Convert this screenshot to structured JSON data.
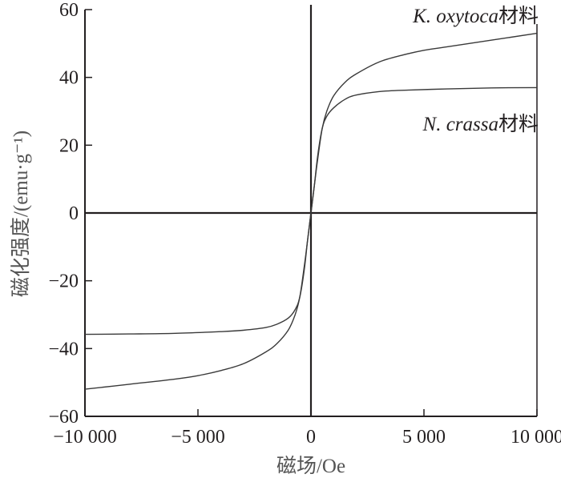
{
  "chart_data": {
    "type": "line",
    "title": "",
    "xlabel": "磁场/Oe",
    "ylabel": "磁化强度/(emu·g⁻¹)",
    "xlim": [
      -10000,
      10000
    ],
    "ylim": [
      -60,
      60
    ],
    "xticks": [
      -10000,
      -5000,
      0,
      5000,
      10000
    ],
    "xtick_labels": [
      "−10 000",
      "−5 000",
      "0",
      "5 000",
      "10 000"
    ],
    "yticks": [
      -60,
      -40,
      -20,
      0,
      20,
      40,
      60
    ],
    "ytick_labels": [
      "−60",
      "−40",
      "−20",
      "0",
      "20",
      "40",
      "60"
    ],
    "grid": false,
    "series": [
      {
        "name_italic": "K. oxytoca",
        "name_suffix": "材料",
        "x": [
          -10000,
          -8000,
          -6000,
          -5000,
          -4000,
          -3000,
          -2000,
          -1500,
          -1000,
          -700,
          -500,
          -300,
          -150,
          0,
          150,
          300,
          500,
          700,
          1000,
          1500,
          2000,
          3000,
          4000,
          5000,
          6000,
          8000,
          10000
        ],
        "y": [
          -52,
          -50.5,
          -49,
          -48,
          -46.5,
          -44.5,
          -41,
          -38.5,
          -34.5,
          -30,
          -25,
          -16,
          -8,
          0,
          8,
          16,
          25,
          30,
          34.5,
          38.5,
          41,
          44.5,
          46.5,
          48,
          49,
          51,
          53
        ]
      },
      {
        "name_italic": "N. crassa",
        "name_suffix": "材料",
        "x": [
          -10000,
          -8000,
          -6000,
          -4000,
          -3000,
          -2000,
          -1500,
          -1000,
          -700,
          -500,
          -300,
          -150,
          0,
          150,
          300,
          500,
          700,
          1000,
          1500,
          2000,
          3000,
          4000,
          6000,
          8000,
          10000
        ],
        "y": [
          -35.8,
          -35.7,
          -35.5,
          -35,
          -34.6,
          -33.8,
          -32.8,
          -31,
          -28.5,
          -25,
          -17,
          -8,
          0,
          8,
          17,
          25,
          28.5,
          31,
          33.5,
          34.8,
          35.8,
          36.2,
          36.6,
          36.9,
          37
        ]
      }
    ]
  }
}
